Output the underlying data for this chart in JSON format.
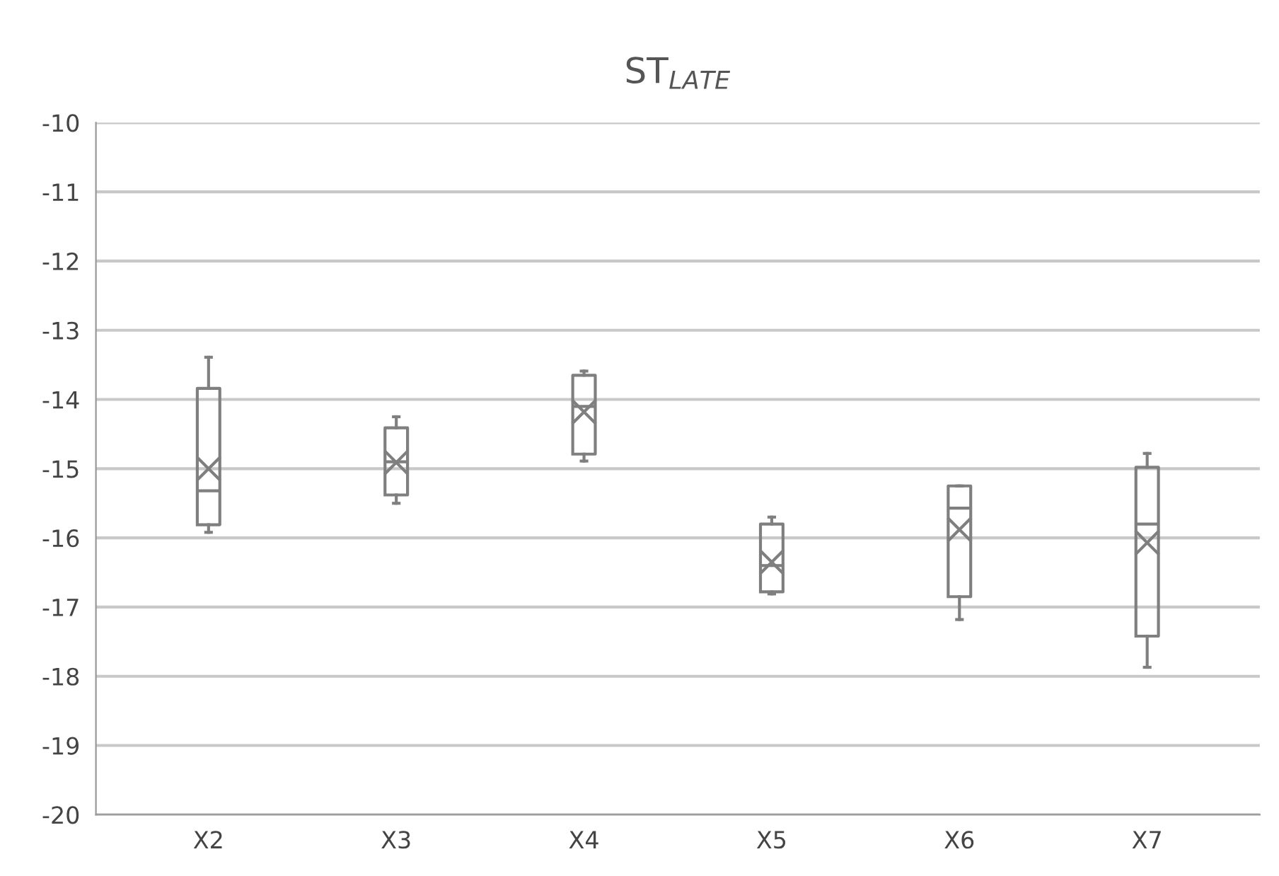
{
  "chart_data": {
    "type": "box",
    "title": "ST$_{LATE}$",
    "categories": [
      "X2",
      "X3",
      "X4",
      "X5",
      "X6",
      "X7"
    ],
    "boxes": [
      {
        "low": -15.92,
        "q1": -15.81,
        "median": -15.32,
        "q3": -13.84,
        "high": -13.39,
        "mean": -15.0
      },
      {
        "low": -15.5,
        "q1": -15.38,
        "median": -14.9,
        "q3": -14.41,
        "high": -14.25,
        "mean": -14.91
      },
      {
        "low": -14.89,
        "q1": -14.79,
        "median": -14.1,
        "q3": -13.65,
        "high": -13.59,
        "mean": -14.18
      },
      {
        "low": -16.81,
        "q1": -16.78,
        "median": -16.4,
        "q3": -15.8,
        "high": -15.7,
        "mean": -16.35
      },
      {
        "low": -17.18,
        "q1": -16.85,
        "median": -15.57,
        "q3": -15.25,
        "high": -15.25,
        "mean": -15.88
      },
      {
        "low": -17.87,
        "q1": -17.42,
        "median": -15.8,
        "q3": -14.98,
        "high": -14.78,
        "mean": -16.07
      }
    ],
    "color": "#7f7f7f",
    "ylim": [
      -20,
      -10
    ],
    "yticks": [
      -20,
      -19,
      -18,
      -17,
      -16,
      -15,
      -14,
      -13,
      -12,
      -11,
      -10
    ],
    "grid": "y"
  }
}
